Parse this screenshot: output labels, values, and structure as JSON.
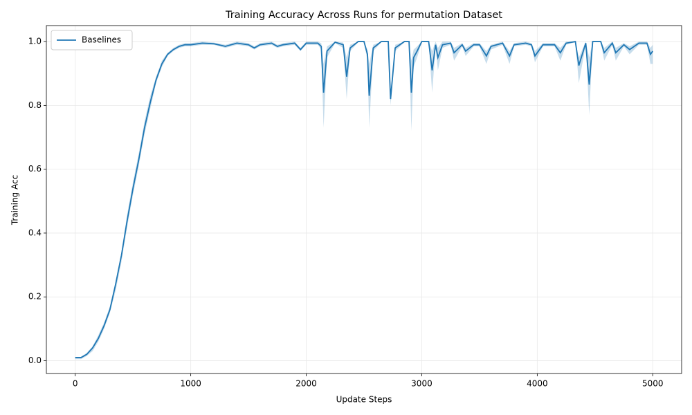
{
  "chart_data": {
    "type": "line",
    "title": "Training Accuracy Across Runs for permutation Dataset",
    "xlabel": "Update Steps",
    "ylabel": "Training Acc",
    "xlim": [
      -250,
      5250
    ],
    "ylim": [
      -0.04,
      1.05
    ],
    "xticks": [
      0,
      1000,
      2000,
      3000,
      4000,
      5000
    ],
    "yticks": [
      {
        "value": 0,
        "label": "0.0"
      },
      0.2,
      0.4,
      0.6,
      0.8,
      {
        "value": 1,
        "label": "1.0"
      }
    ],
    "grid": true,
    "legend": "upper left",
    "x": [
      0,
      50,
      100,
      150,
      200,
      250,
      300,
      350,
      400,
      450,
      500,
      550,
      600,
      650,
      700,
      750,
      800,
      850,
      900,
      950,
      1000,
      1100,
      1200,
      1300,
      1350,
      1400,
      1500,
      1550,
      1600,
      1700,
      1750,
      1800,
      1900,
      1950,
      2000,
      2100,
      2130,
      2150,
      2180,
      2250,
      2320,
      2350,
      2380,
      2450,
      2500,
      2530,
      2545,
      2580,
      2650,
      2710,
      2730,
      2770,
      2850,
      2890,
      2910,
      2930,
      2960,
      3000,
      3060,
      3090,
      3120,
      3140,
      3180,
      3250,
      3280,
      3350,
      3380,
      3450,
      3500,
      3560,
      3600,
      3700,
      3760,
      3800,
      3900,
      3950,
      3980,
      4050,
      4150,
      4200,
      4250,
      4330,
      4360,
      4420,
      4450,
      4480,
      4550,
      4580,
      4650,
      4680,
      4750,
      4800,
      4880,
      4950,
      4980,
      5000
    ],
    "series": [
      {
        "name": "Baselines",
        "color": "#1f77b4",
        "values": [
          0.01,
          0.01,
          0.02,
          0.04,
          0.07,
          0.11,
          0.16,
          0.24,
          0.33,
          0.44,
          0.54,
          0.63,
          0.73,
          0.81,
          0.88,
          0.93,
          0.96,
          0.975,
          0.985,
          0.99,
          0.99,
          0.995,
          0.993,
          0.985,
          0.99,
          0.995,
          0.99,
          0.98,
          0.99,
          0.995,
          0.985,
          0.99,
          0.995,
          0.975,
          0.995,
          0.995,
          0.985,
          0.84,
          0.97,
          0.998,
          0.99,
          0.89,
          0.98,
          1.0,
          1.0,
          0.96,
          0.83,
          0.98,
          1.0,
          1.0,
          0.82,
          0.98,
          1.0,
          1.0,
          0.84,
          0.95,
          0.97,
          1.0,
          1.0,
          0.91,
          0.99,
          0.95,
          0.99,
          0.995,
          0.965,
          0.99,
          0.97,
          0.99,
          0.99,
          0.955,
          0.985,
          0.995,
          0.955,
          0.99,
          0.995,
          0.99,
          0.955,
          0.99,
          0.99,
          0.965,
          0.995,
          1.0,
          0.925,
          0.995,
          0.865,
          1.0,
          1.0,
          0.965,
          0.995,
          0.965,
          0.99,
          0.975,
          0.995,
          0.995,
          0.96,
          0.97
        ],
        "lower": [
          0.005,
          0.005,
          0.015,
          0.03,
          0.06,
          0.1,
          0.15,
          0.22,
          0.31,
          0.42,
          0.52,
          0.61,
          0.71,
          0.79,
          0.87,
          0.92,
          0.955,
          0.97,
          0.98,
          0.985,
          0.985,
          0.99,
          0.99,
          0.98,
          0.985,
          0.99,
          0.985,
          0.975,
          0.985,
          0.99,
          0.98,
          0.985,
          0.99,
          0.97,
          0.99,
          0.99,
          0.975,
          0.73,
          0.95,
          0.995,
          0.98,
          0.82,
          0.97,
          0.998,
          0.998,
          0.94,
          0.73,
          0.97,
          0.998,
          0.998,
          0.8,
          0.97,
          0.998,
          0.998,
          0.72,
          0.92,
          0.95,
          0.998,
          0.998,
          0.84,
          0.98,
          0.91,
          0.98,
          0.99,
          0.94,
          0.985,
          0.955,
          0.985,
          0.985,
          0.93,
          0.975,
          0.99,
          0.93,
          0.985,
          0.99,
          0.985,
          0.935,
          0.985,
          0.985,
          0.94,
          0.99,
          0.998,
          0.87,
          0.99,
          0.77,
          0.998,
          0.998,
          0.94,
          0.99,
          0.94,
          0.985,
          0.96,
          0.99,
          0.99,
          0.93,
          0.93
        ],
        "upper": [
          0.012,
          0.012,
          0.025,
          0.045,
          0.08,
          0.12,
          0.17,
          0.25,
          0.34,
          0.46,
          0.56,
          0.65,
          0.75,
          0.83,
          0.89,
          0.94,
          0.965,
          0.98,
          0.99,
          0.995,
          0.995,
          1.0,
          0.997,
          0.99,
          0.995,
          1.0,
          0.995,
          0.985,
          0.995,
          1.0,
          0.99,
          0.995,
          1.0,
          0.98,
          1.0,
          1.0,
          0.995,
          0.93,
          0.985,
          1.0,
          0.997,
          0.95,
          0.99,
          1.0,
          1.0,
          0.975,
          0.93,
          0.99,
          1.0,
          1.0,
          0.84,
          0.99,
          1.0,
          1.0,
          0.94,
          0.975,
          0.985,
          1.0,
          1.0,
          0.97,
          1.0,
          0.98,
          1.0,
          1.0,
          0.98,
          0.995,
          0.98,
          0.995,
          0.995,
          0.97,
          0.99,
          1.0,
          0.97,
          0.995,
          1.0,
          0.995,
          0.97,
          0.995,
          0.995,
          0.98,
          1.0,
          1.0,
          0.95,
          1.0,
          0.95,
          1.0,
          1.0,
          0.98,
          1.0,
          0.98,
          0.995,
          0.985,
          1.0,
          1.0,
          0.98,
          0.99
        ]
      }
    ]
  }
}
